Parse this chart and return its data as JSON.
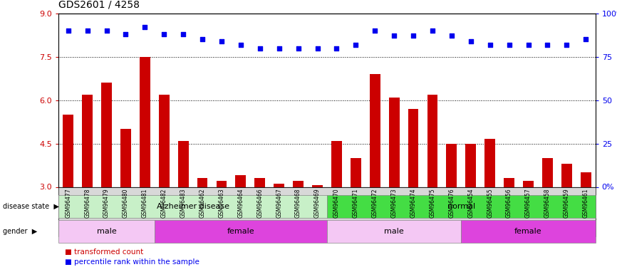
{
  "title": "GDS2601 / 4258",
  "samples": [
    "GSM96477",
    "GSM96478",
    "GSM96479",
    "GSM96480",
    "GSM96481",
    "GSM96482",
    "GSM96483",
    "GSM96462",
    "GSM96463",
    "GSM96464",
    "GSM96466",
    "GSM96467",
    "GSM96468",
    "GSM96469",
    "GSM96470",
    "GSM96471",
    "GSM96472",
    "GSM96473",
    "GSM96474",
    "GSM96475",
    "GSM96476",
    "GSM96454",
    "GSM96455",
    "GSM96456",
    "GSM96457",
    "GSM96458",
    "GSM96459",
    "GSM96461"
  ],
  "bar_values": [
    5.5,
    6.2,
    6.6,
    5.0,
    7.5,
    6.2,
    4.6,
    3.3,
    3.2,
    3.4,
    3.3,
    3.1,
    3.2,
    3.05,
    4.6,
    4.0,
    6.9,
    6.1,
    5.7,
    6.2,
    4.5,
    4.5,
    4.65,
    3.3,
    3.2,
    4.0,
    3.8,
    3.5
  ],
  "percentile_values": [
    90,
    90,
    90,
    88,
    92,
    88,
    88,
    85,
    84,
    82,
    80,
    80,
    80,
    80,
    80,
    82,
    90,
    87,
    87,
    90,
    87,
    84,
    82,
    82,
    82,
    82,
    82,
    85
  ],
  "bar_color": "#cc0000",
  "percentile_color": "#0000ee",
  "ylim_left": [
    3,
    9
  ],
  "ylim_right": [
    0,
    100
  ],
  "yticks_left": [
    3,
    4.5,
    6,
    7.5,
    9
  ],
  "yticks_right": [
    0,
    25,
    50,
    75,
    100
  ],
  "grid_lines": [
    4.5,
    6.0,
    7.5
  ],
  "disease_state_groups": [
    {
      "label": "Alzheimer disease",
      "start": 0,
      "end": 14,
      "color": "#c8f0c8"
    },
    {
      "label": "normal",
      "start": 14,
      "end": 28,
      "color": "#44dd44"
    }
  ],
  "gender_groups": [
    {
      "label": "male",
      "start": 0,
      "end": 5,
      "color": "#f4c8f4"
    },
    {
      "label": "female",
      "start": 5,
      "end": 14,
      "color": "#dd44dd"
    },
    {
      "label": "male",
      "start": 14,
      "end": 21,
      "color": "#f4c8f4"
    },
    {
      "label": "female",
      "start": 21,
      "end": 28,
      "color": "#dd44dd"
    }
  ],
  "legend_items": [
    {
      "label": "transformed count",
      "color": "#cc0000"
    },
    {
      "label": "percentile rank within the sample",
      "color": "#0000ee"
    }
  ],
  "disease_label": "disease state",
  "gender_label": "gender",
  "right_yticklabels": [
    "0%",
    "25",
    "50",
    "75",
    "100%"
  ]
}
